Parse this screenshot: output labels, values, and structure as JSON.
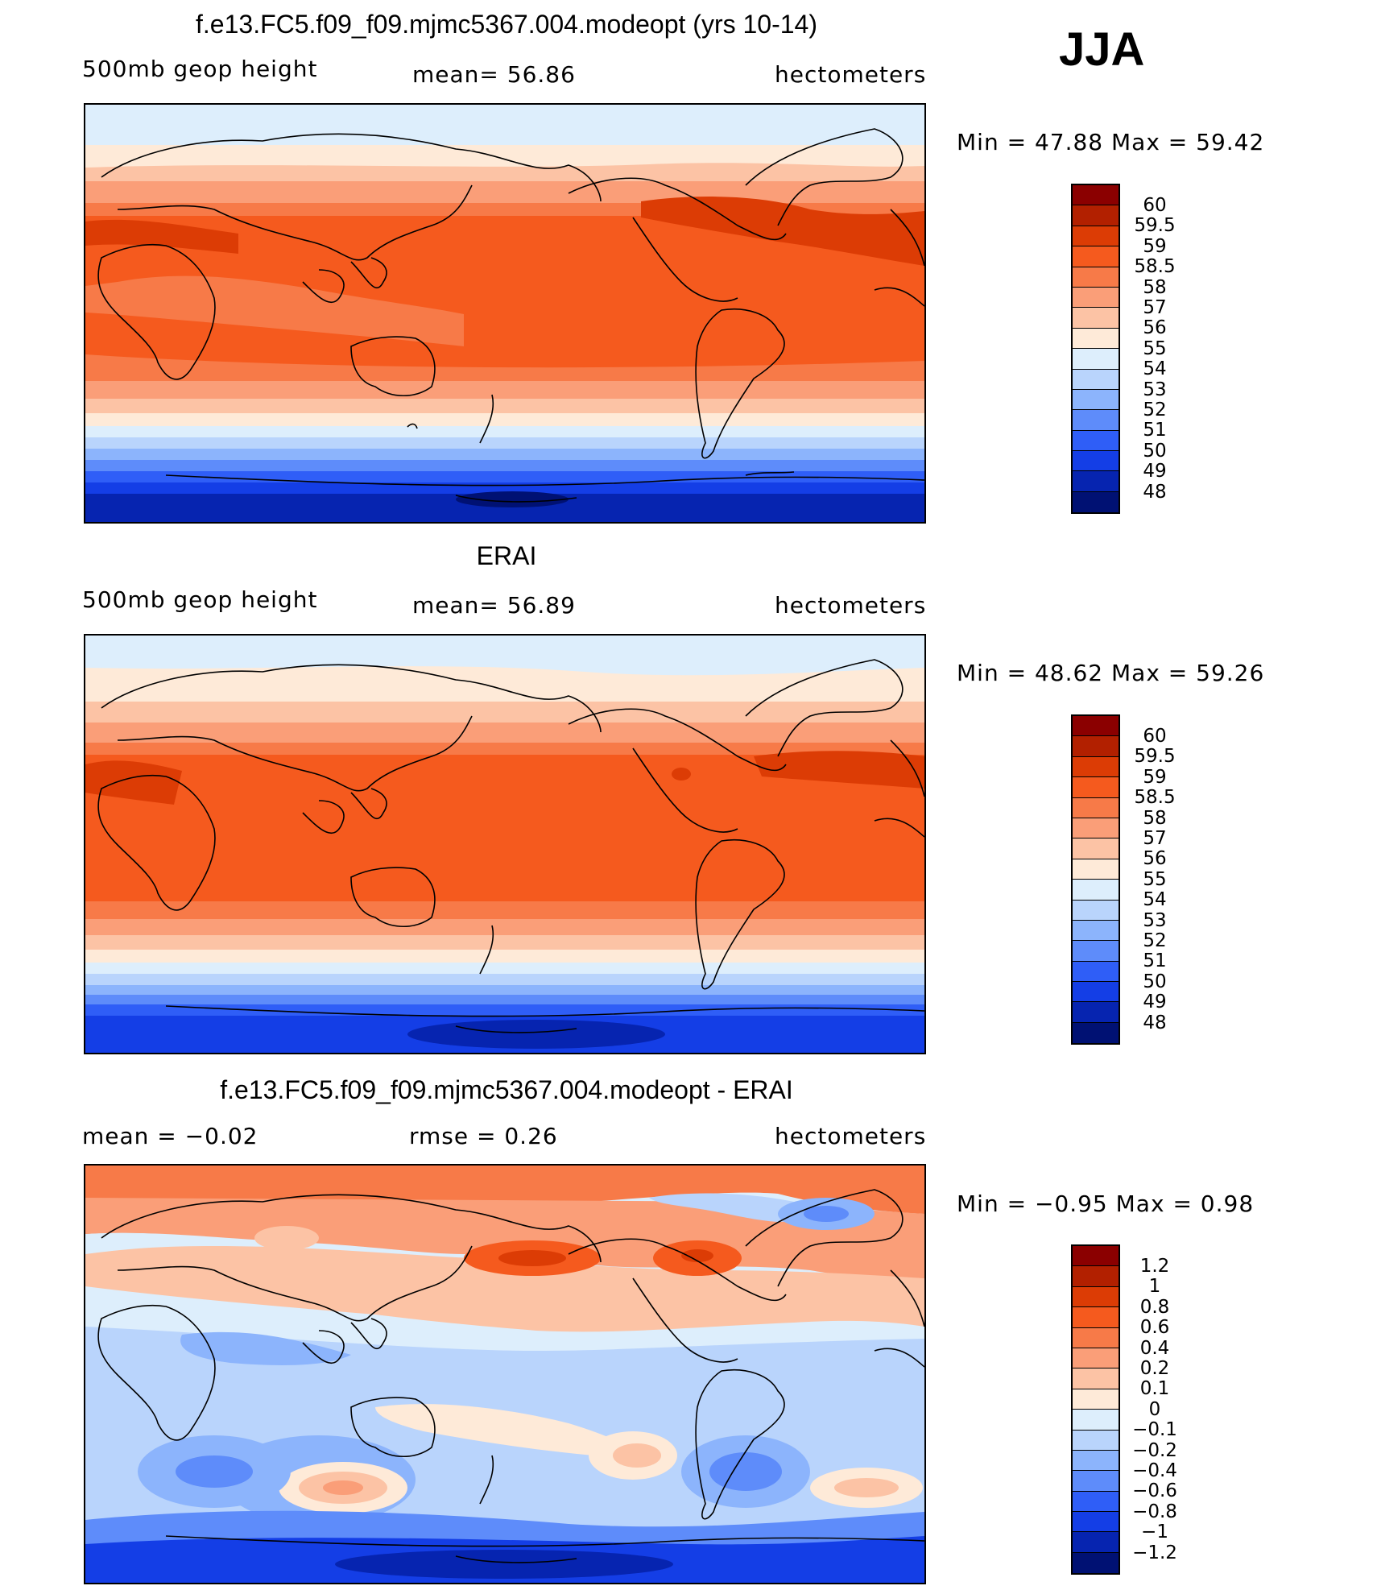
{
  "season": "JJA",
  "panels": [
    {
      "id": "model",
      "title": "f.e13.FC5.f09_f09.mjmc5367.004.modeopt (yrs 10-14)",
      "left_label": "500mb geop height",
      "mid_label": "mean=  56.86",
      "right_label": "hectometers",
      "minmax": "Min =   47.88 Max =   59.42",
      "palette": "abs",
      "legend_labels": [
        "60",
        "59.5",
        "59",
        "58.5",
        "58",
        "57",
        "56",
        "55",
        "54",
        "53",
        "52",
        "51",
        "50",
        "49",
        "48"
      ]
    },
    {
      "id": "obs",
      "title": "ERAI",
      "left_label": "500mb geop height",
      "mid_label": "mean=  56.89",
      "right_label": "hectometers",
      "minmax": "Min =   48.62 Max =   59.26",
      "palette": "abs",
      "legend_labels": [
        "60",
        "59.5",
        "59",
        "58.5",
        "58",
        "57",
        "56",
        "55",
        "54",
        "53",
        "52",
        "51",
        "50",
        "49",
        "48"
      ]
    },
    {
      "id": "diff",
      "title": "f.e13.FC5.f09_f09.mjmc5367.004.modeopt - ERAI",
      "left_label": "mean =   −0.02",
      "mid_label": "rmse =    0.26",
      "right_label": "hectometers",
      "minmax": "Min =   −0.95 Max =    0.98",
      "palette": "diff",
      "legend_labels": [
        "1.2",
        "1",
        "0.8",
        "0.6",
        "0.4",
        "0.2",
        "0.1",
        "0",
        "−0.1",
        "−0.2",
        "−0.4",
        "−0.6",
        "−0.8",
        "−1",
        "−1.2"
      ]
    }
  ],
  "palettes": {
    "abs": [
      "#8b0000",
      "#b22000",
      "#dc3c05",
      "#f55a1e",
      "#f77a48",
      "#fa9e78",
      "#fcc3a5",
      "#feead8",
      "#ddeefc",
      "#b9d4fc",
      "#8cb4fc",
      "#5e8cfa",
      "#2f5ef7",
      "#143ee6",
      "#0624b0",
      "#001173"
    ],
    "diff": [
      "#8b0000",
      "#b22000",
      "#dc3c05",
      "#f55a1e",
      "#f77a48",
      "#fa9e78",
      "#fcc3a5",
      "#feead8",
      "#ddeefc",
      "#b9d4fc",
      "#8cb4fc",
      "#5e8cfa",
      "#2f5ef7",
      "#143ee6",
      "#0624b0",
      "#001173"
    ]
  }
}
